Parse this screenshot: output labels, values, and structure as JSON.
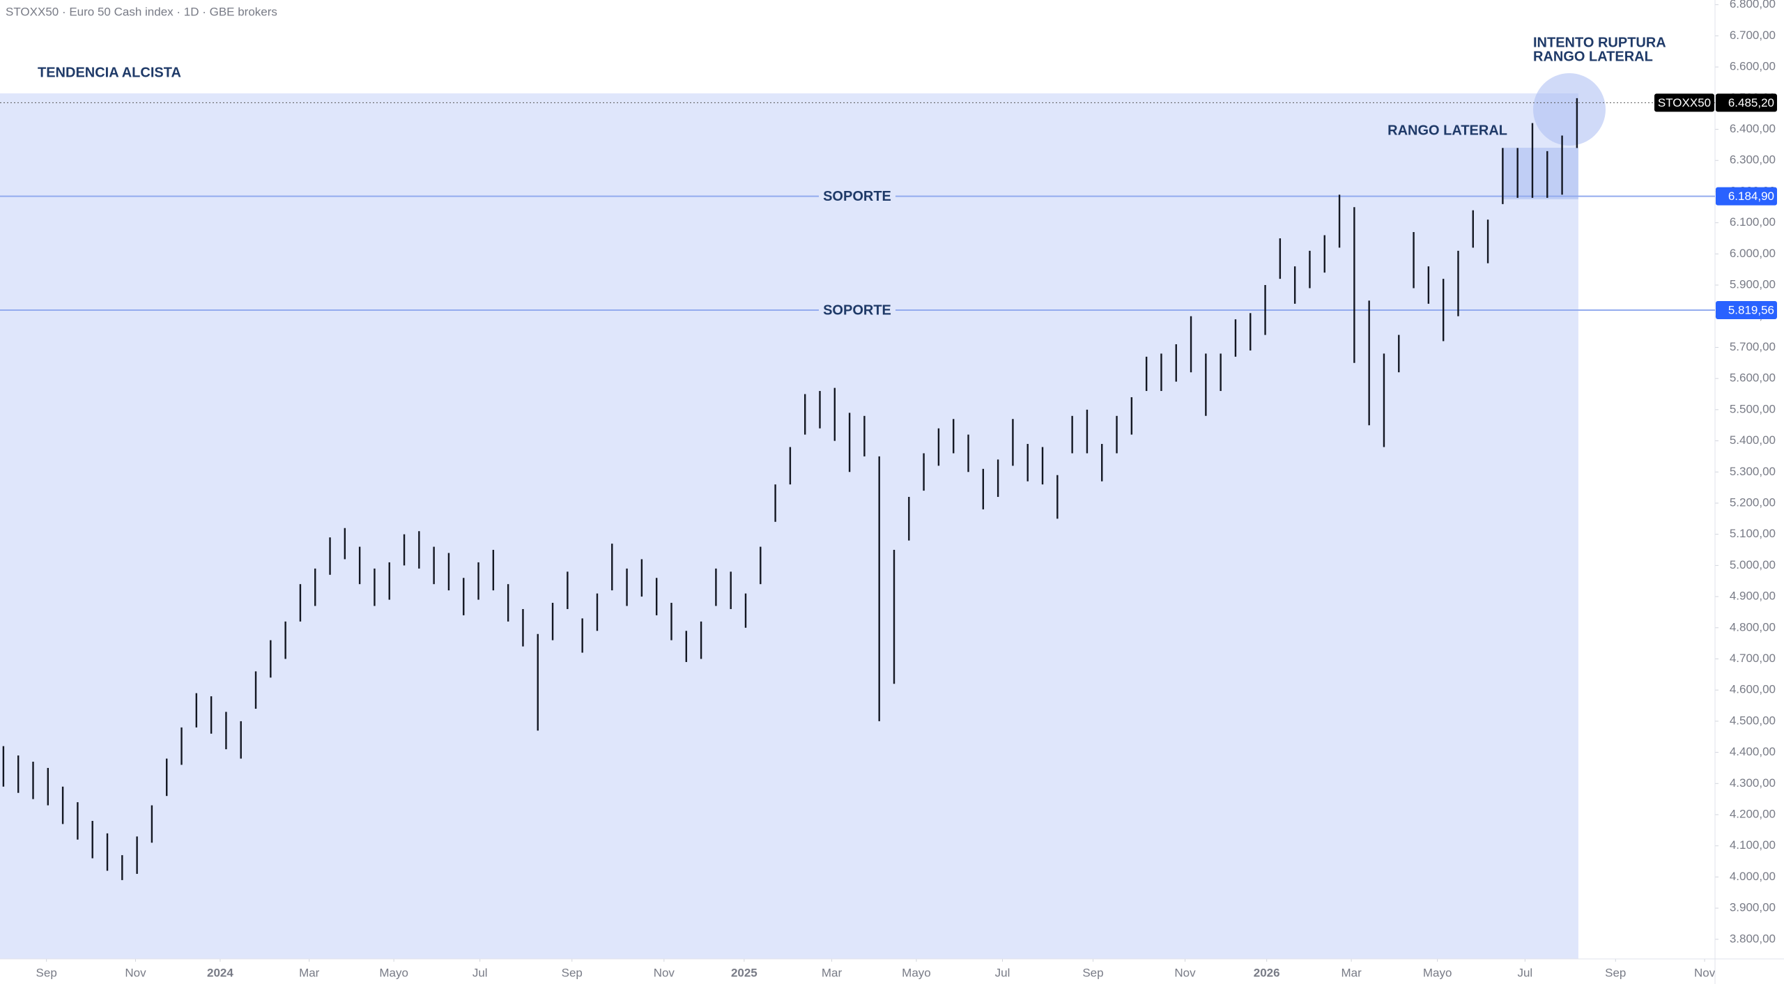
{
  "chart_data": {
    "type": "range-bar",
    "title": "STOXX50 · Euro 50 Cash index · 1D · GBE brokers",
    "annotations": {
      "trend": "TENDENCIA ALCISTA",
      "breakout": [
        "INTENTO RUPTURA",
        "RANGO LATERAL"
      ],
      "range": "RANGO LATERAL"
    },
    "levels": [
      {
        "name": "SOPORTE",
        "value": 6184.9,
        "label": "6.184,90"
      },
      {
        "name": "SOPORTE",
        "value": 5819.56,
        "label": "5.819,56"
      }
    ],
    "last": {
      "name": "STOXX50",
      "value": 6485.2,
      "label": "6.485,20"
    },
    "color": "#131722",
    "high": [
      4420,
      4390,
      4370,
      4350,
      4290,
      4240,
      4180,
      4140,
      4070,
      4130,
      4230,
      4380,
      4480,
      4590,
      4580,
      4530,
      4500,
      4660,
      4760,
      4820,
      4940,
      4990,
      5090,
      5120,
      5060,
      4990,
      5010,
      5100,
      5110,
      5060,
      5040,
      4960,
      5010,
      5050,
      4940,
      4860,
      4780,
      4880,
      4980,
      4830,
      4910,
      5070,
      4990,
      5020,
      4960,
      4880,
      4790,
      4820,
      4990,
      4980,
      4910,
      5060,
      5260,
      5380,
      5550,
      5560,
      5570,
      5490,
      5480,
      5350,
      5050,
      5220,
      5360,
      5440,
      5470,
      5420,
      5310,
      5340,
      5470,
      5390,
      5380,
      5290,
      5480,
      5500,
      5390,
      5480,
      5540,
      5670,
      5680,
      5710,
      5800,
      5680,
      5680,
      5790,
      5810,
      5900,
      6050,
      5960,
      6010,
      6060,
      6190,
      6150,
      5850,
      5680,
      5740,
      6070,
      5960,
      5920,
      6010,
      6140,
      6110,
      6340,
      6340,
      6420,
      6330,
      6380,
      6500
    ],
    "low": [
      4290,
      4270,
      4250,
      4230,
      4170,
      4120,
      4060,
      4020,
      3990,
      4010,
      4110,
      4260,
      4360,
      4480,
      4460,
      4410,
      4380,
      4540,
      4640,
      4700,
      4820,
      4870,
      4970,
      5020,
      4940,
      4870,
      4890,
      5000,
      4990,
      4940,
      4920,
      4840,
      4890,
      4920,
      4820,
      4740,
      4470,
      4760,
      4860,
      4720,
      4790,
      4920,
      4870,
      4900,
      4840,
      4760,
      4690,
      4700,
      4870,
      4860,
      4800,
      4940,
      5140,
      5260,
      5420,
      5440,
      5400,
      5300,
      5350,
      4500,
      4620,
      5080,
      5240,
      5320,
      5360,
      5300,
      5180,
      5220,
      5320,
      5270,
      5260,
      5150,
      5360,
      5360,
      5270,
      5360,
      5420,
      5560,
      5560,
      5590,
      5620,
      5480,
      5560,
      5670,
      5690,
      5740,
      5920,
      5840,
      5890,
      5940,
      6020,
      5650,
      5450,
      5380,
      5620,
      5890,
      5840,
      5720,
      5800,
      6020,
      5970,
      6160,
      6180,
      6180,
      6180,
      6190,
      6340
    ],
    "xlim": [
      -0.23,
      115.3
    ],
    "xticks": [
      {
        "value": 2.9,
        "label": "Sep"
      },
      {
        "value": 8.9,
        "label": "Nov"
      },
      {
        "value": 14.6,
        "label": "2024"
      },
      {
        "value": 20.6,
        "label": "Mar"
      },
      {
        "value": 26.3,
        "label": "Mayo"
      },
      {
        "value": 32.1,
        "label": "Jul"
      },
      {
        "value": 38.3,
        "label": "Sep"
      },
      {
        "value": 44.5,
        "label": "Nov"
      },
      {
        "value": 49.9,
        "label": "2025"
      },
      {
        "value": 55.8,
        "label": "Mar"
      },
      {
        "value": 61.5,
        "label": "Mayo"
      },
      {
        "value": 67.3,
        "label": "Jul"
      },
      {
        "value": 73.4,
        "label": "Sep"
      },
      {
        "value": 79.6,
        "label": "Nov"
      },
      {
        "value": 85.1,
        "label": "2026"
      },
      {
        "value": 90.8,
        "label": "Mar"
      },
      {
        "value": 96.6,
        "label": "Mayo"
      },
      {
        "value": 102.5,
        "label": "Jul"
      },
      {
        "value": 108.6,
        "label": "Sep"
      },
      {
        "value": 114.6,
        "label": "Nov"
      }
    ],
    "ylim": [
      3737,
      6815
    ],
    "yticks": [
      {
        "value": 3800,
        "label": "3.800,00"
      },
      {
        "value": 3900,
        "label": "3.900,00"
      },
      {
        "value": 4000,
        "label": "4.000,00"
      },
      {
        "value": 4100,
        "label": "4.100,00"
      },
      {
        "value": 4200,
        "label": "4.200,00"
      },
      {
        "value": 4300,
        "label": "4.300,00"
      },
      {
        "value": 4400,
        "label": "4.400,00"
      },
      {
        "value": 4500,
        "label": "4.500,00"
      },
      {
        "value": 4600,
        "label": "4.600,00"
      },
      {
        "value": 4700,
        "label": "4.700,00"
      },
      {
        "value": 4800,
        "label": "4.800,00"
      },
      {
        "value": 4900,
        "label": "4.900,00"
      },
      {
        "value": 5000,
        "label": "5.000,00"
      },
      {
        "value": 5100,
        "label": "5.100,00"
      },
      {
        "value": 5200,
        "label": "5.200,00"
      },
      {
        "value": 5300,
        "label": "5.300,00"
      },
      {
        "value": 5400,
        "label": "5.400,00"
      },
      {
        "value": 5500,
        "label": "5.500,00"
      },
      {
        "value": 5600,
        "label": "5.600,00"
      },
      {
        "value": 5700,
        "label": "5.700,00"
      },
      {
        "value": 5800,
        "label": "5.800,00"
      },
      {
        "value": 5900,
        "label": "5.900,00"
      },
      {
        "value": 6000,
        "label": "6.000,00"
      },
      {
        "value": 6100,
        "label": "6.100,00"
      },
      {
        "value": 6200,
        "label": "6.200,00"
      },
      {
        "value": 6300,
        "label": "6.300,00"
      },
      {
        "value": 6400,
        "label": "6.400,00"
      },
      {
        "value": 6500,
        "label": "6.500,00"
      },
      {
        "value": 6600,
        "label": "6.600,00"
      },
      {
        "value": 6700,
        "label": "6.700,00"
      },
      {
        "value": 6800,
        "label": "6.800,00"
      }
    ]
  }
}
